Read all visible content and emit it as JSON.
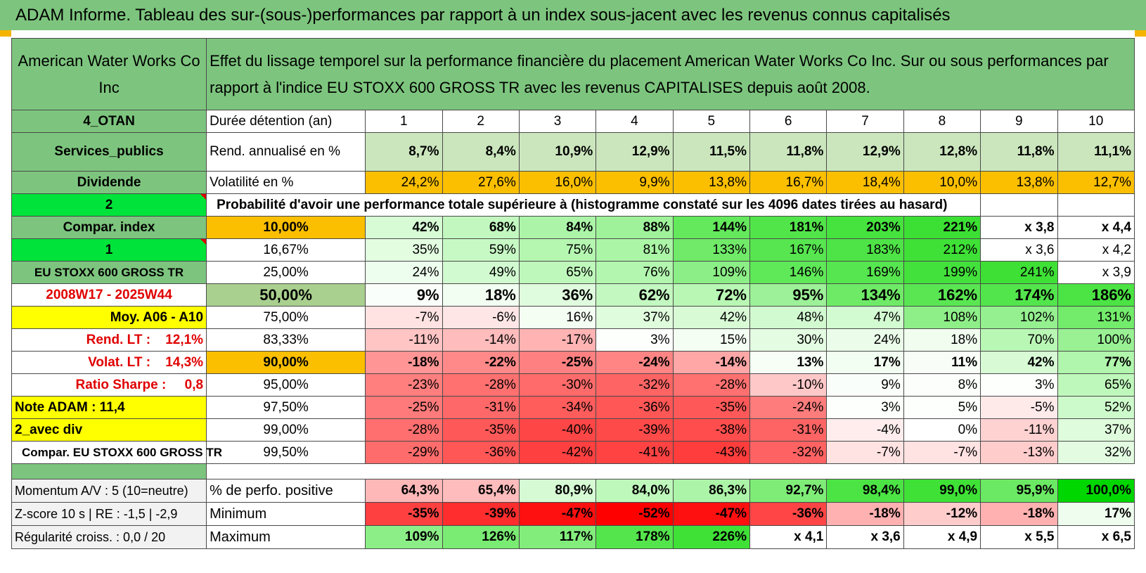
{
  "title": "ADAM Informe. Tableau des sur-(sous-)performances par rapport à un index sous-jacent avec les revenus connus capitalisés",
  "colors": {
    "title_bg": "#7dc57e",
    "accent_orange": "#fbbf00",
    "yellow": "#ffff00",
    "bright_green": "#00e33a",
    "label_red": "#e00000"
  },
  "header": {
    "left": "American Water Works Co Inc",
    "right": "Effet du lissage temporel sur la performance financière du placement American Water Works Co Inc. Sur ou sous performances par rapport à l'indice EU STOXX 600 GROSS TR avec les revenus CAPITALISES depuis août 2008."
  },
  "rows": [
    {
      "left": "4_OTAN",
      "label": "Durée détention (an)",
      "values": [
        "1",
        "2",
        "3",
        "4",
        "5",
        "6",
        "7",
        "8",
        "9",
        "10"
      ],
      "fills": [
        "#ffffff",
        "#ffffff",
        "#ffffff",
        "#ffffff",
        "#ffffff",
        "#ffffff",
        "#ffffff",
        "#ffffff",
        "#ffffff",
        "#ffffff"
      ]
    },
    {
      "left": "Services_publics",
      "label": "Rend. annualisé en %",
      "values": [
        "8,7%",
        "8,4%",
        "10,9%",
        "12,9%",
        "11,5%",
        "11,8%",
        "12,9%",
        "12,8%",
        "11,8%",
        "11,1%"
      ],
      "fills": [
        "#cbe6bd",
        "#cbe6bd",
        "#cbe6bd",
        "#cbe6bd",
        "#cbe6bd",
        "#cbe6bd",
        "#cbe6bd",
        "#cbe6bd",
        "#cbe6bd",
        "#cbe6bd"
      ]
    },
    {
      "left": "Dividende",
      "label": "Volatilité en %",
      "values": [
        "24,2%",
        "27,6%",
        "16,0%",
        "9,9%",
        "13,8%",
        "16,7%",
        "18,4%",
        "10,0%",
        "13,8%",
        "12,7%"
      ],
      "fills": [
        "#fbbf00",
        "#fbbf00",
        "#fbbf00",
        "#fbbf00",
        "#fbbf00",
        "#fbbf00",
        "#fbbf00",
        "#fbbf00",
        "#fbbf00",
        "#fbbf00"
      ]
    },
    {
      "left": "2",
      "prob_title": "Probabilité d'avoir une performance totale supérieure à (histogramme constaté sur les 4096 dates tirées au hasard)"
    },
    {
      "left": "Compar. index",
      "label": "10,00%",
      "values": [
        "42%",
        "68%",
        "84%",
        "88%",
        "144%",
        "181%",
        "203%",
        "221%",
        "x 3,8",
        "x 4,4"
      ],
      "fills": [
        "#d7fbd5",
        "#c2f8bf",
        "#acf5a8",
        "#9ff29a",
        "#64e85c",
        "#52e54a",
        "#46e33e",
        "#3ce034",
        "#ffffff",
        "#ffffff"
      ]
    },
    {
      "left": "1",
      "label": "16,67%",
      "values": [
        "35%",
        "59%",
        "75%",
        "81%",
        "133%",
        "167%",
        "183%",
        "212%",
        "x 3,6",
        "x 4,2"
      ],
      "fills": [
        "#e2fde0",
        "#c7f9c4",
        "#b5f6b1",
        "#abf5a7",
        "#70ea68",
        "#57e650",
        "#4ee447",
        "#3fe137",
        "#ffffff",
        "#ffffff"
      ]
    },
    {
      "left": "EU STOXX 600 GROSS TR",
      "label": "25,00%",
      "values": [
        "24%",
        "49%",
        "65%",
        "76%",
        "109%",
        "146%",
        "169%",
        "199%",
        "241%",
        "x 3,9"
      ],
      "fills": [
        "#eefeee",
        "#d2fad0",
        "#bff8bb",
        "#b3f6af",
        "#8cee86",
        "#5fe858",
        "#56e64f",
        "#43e13c",
        "#3ee036",
        "#ffffff"
      ]
    },
    {
      "left": "2008W17 - 2025W44",
      "label": "50,00%",
      "values": [
        "9%",
        "18%",
        "36%",
        "62%",
        "72%",
        "95%",
        "134%",
        "162%",
        "174%",
        "186%"
      ],
      "fills": [
        "#fafefa",
        "#f2fef1",
        "#e0fcde",
        "#c3f8c0",
        "#b8f7b4",
        "#9df198",
        "#6fea67",
        "#5ae652",
        "#53e54c",
        "#4be444"
      ]
    },
    {
      "left": "Moy. A06 - A10",
      "label": "75,00%",
      "values": [
        "-7%",
        "-6%",
        "16%",
        "37%",
        "42%",
        "48%",
        "47%",
        "108%",
        "102%",
        "131%"
      ],
      "fills": [
        "#ffe2e2",
        "#ffe6e6",
        "#f4fef3",
        "#dffcdc",
        "#d8fbd6",
        "#d2fad0",
        "#d3fbd1",
        "#8eef88",
        "#95f090",
        "#73eb6b"
      ]
    },
    {
      "left": "Rend. LT :    12,1%",
      "label": "83,33%",
      "values": [
        "-11%",
        "-14%",
        "-17%",
        "3%",
        "15%",
        "30%",
        "24%",
        "18%",
        "70%",
        "100%"
      ],
      "fills": [
        "#ffc4c4",
        "#ffbcbc",
        "#ffb3b3",
        "#fdfffd",
        "#f4fef3",
        "#e4fce2",
        "#ebfdea",
        "#f0fdef",
        "#b9f7b5",
        "#99f194"
      ]
    },
    {
      "left": "Volat. LT :    14,3%",
      "label": "90,00%",
      "values": [
        "-18%",
        "-22%",
        "-25%",
        "-24%",
        "-14%",
        "13%",
        "17%",
        "11%",
        "42%",
        "77%"
      ],
      "fills": [
        "#ff9595",
        "#ff8989",
        "#ff8080",
        "#ff8484",
        "#ffa7a7",
        "#f6fef5",
        "#f2fef1",
        "#f8fef7",
        "#d8fbd6",
        "#b1f6ad"
      ]
    },
    {
      "left": "Ratio Sharpe :     0,8",
      "label": "95,00%",
      "values": [
        "-23%",
        "-28%",
        "-30%",
        "-32%",
        "-28%",
        "-10%",
        "9%",
        "8%",
        "3%",
        "65%"
      ],
      "fills": [
        "#ff7e7e",
        "#ff7070",
        "#ff6a6a",
        "#ff6464",
        "#ff7070",
        "#ffc8c8",
        "#fafefa",
        "#fbfefb",
        "#fdfffd",
        "#bff8bb"
      ]
    },
    {
      "left": "Note ADAM : 11,4",
      "label": "97,50%",
      "values": [
        "-25%",
        "-31%",
        "-34%",
        "-36%",
        "-35%",
        "-24%",
        "3%",
        "5%",
        "-5%",
        "52%"
      ],
      "fills": [
        "#ff7a7a",
        "#ff6868",
        "#ff5c5c",
        "#ff5656",
        "#ff5858",
        "#ff7c7c",
        "#fdfffd",
        "#fcfffc",
        "#ffeaea",
        "#cdfacb"
      ]
    },
    {
      "left": "2_avec div",
      "label": "99,00%",
      "values": [
        "-28%",
        "-35%",
        "-40%",
        "-39%",
        "-38%",
        "-31%",
        "-4%",
        "0%",
        "-11%",
        "37%"
      ],
      "fills": [
        "#ff6f6f",
        "#ff5858",
        "#ff4646",
        "#ff4a4a",
        "#ff4d4d",
        "#ff6464",
        "#ffeded",
        "#ffffff",
        "#ffd2d2",
        "#dffcdc"
      ]
    },
    {
      "left": "Compar. EU STOXX 600 GROSS TR",
      "label": "99,50%",
      "values": [
        "-29%",
        "-36%",
        "-42%",
        "-41%",
        "-43%",
        "-32%",
        "-7%",
        "-7%",
        "-13%",
        "32%"
      ],
      "fills": [
        "#ff6c6c",
        "#ff5656",
        "#ff4040",
        "#ff4343",
        "#ff3d3d",
        "#ff6262",
        "#ffe2e2",
        "#ffe2e2",
        "#ffcccc",
        "#e3fce1"
      ]
    },
    {
      "spacer": true
    },
    {
      "left": "Momentum A/V : 5 (10=neutre)",
      "label": "% de perfo. positive",
      "values": [
        "64,3%",
        "65,4%",
        "80,9%",
        "84,0%",
        "86,3%",
        "92,7%",
        "98,4%",
        "99,0%",
        "95,9%",
        "100,0%"
      ],
      "fills": [
        "#ffb8b8",
        "#ffbcbc",
        "#d6fbd4",
        "#bff8bb",
        "#acf5a8",
        "#7fec78",
        "#4ce445",
        "#3fe137",
        "#6ce964",
        "#00d600"
      ]
    },
    {
      "left": "Z-score 10 s | RE : -1,5 | -2,9",
      "label": "Minimum",
      "values": [
        "-35%",
        "-39%",
        "-47%",
        "-52%",
        "-47%",
        "-36%",
        "-18%",
        "-12%",
        "-18%",
        "17%"
      ],
      "fills": [
        "#ff4040",
        "#ff2d2d",
        "#ff1010",
        "#ff0000",
        "#ff1010",
        "#ff4545",
        "#ffb0b0",
        "#ffcccc",
        "#ffb0b0",
        "#eefdee"
      ]
    },
    {
      "left": "Régularité croiss. : 0,0 / 20",
      "label": "Maximum",
      "values": [
        "109%",
        "126%",
        "117%",
        "178%",
        "226%",
        "x 4,1",
        "x 3,6",
        "x 4,9",
        "x 5,5",
        "x 6,5"
      ],
      "fills": [
        "#8cee86",
        "#7aeb73",
        "#83ed7c",
        "#54e54c",
        "#3fe137",
        "#ffffff",
        "#ffffff",
        "#ffffff",
        "#ffffff",
        "#ffffff"
      ]
    }
  ]
}
